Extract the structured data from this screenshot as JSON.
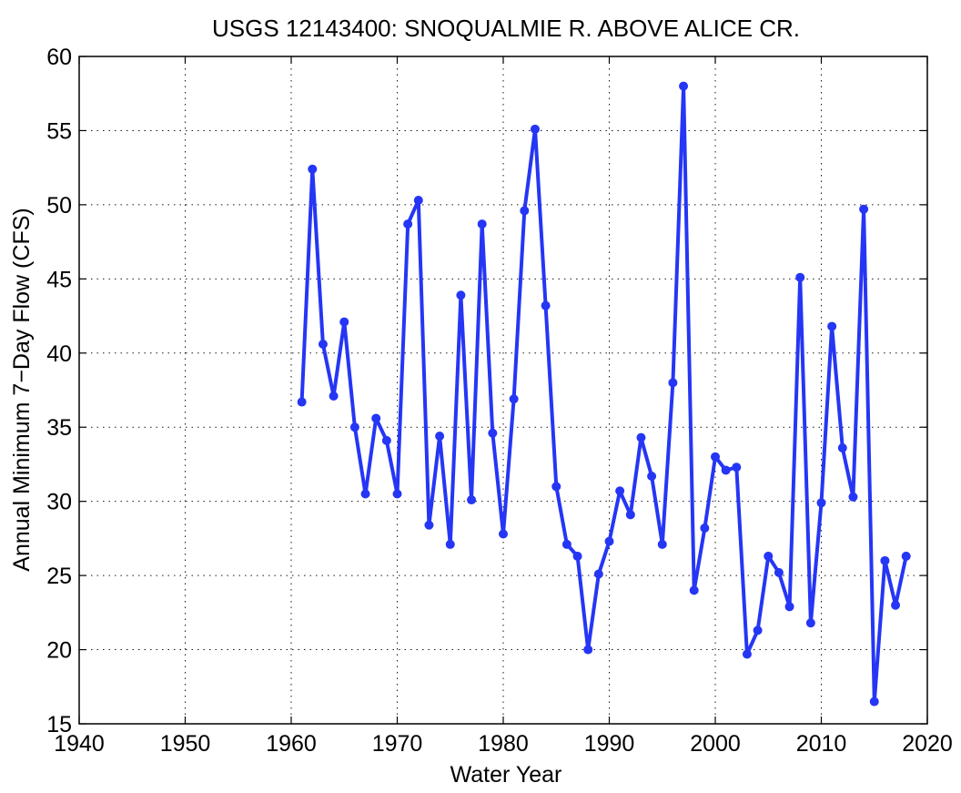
{
  "chart_data": {
    "type": "line",
    "title": "USGS 12143400: SNOQUALMIE R. ABOVE ALICE CR.",
    "xlabel": "Water Year",
    "ylabel": "Annual Minimum 7−Day Flow (CFS)",
    "xlim": [
      1940,
      2020
    ],
    "ylim": [
      15,
      60
    ],
    "xticks": [
      "1940",
      "1950",
      "1960",
      "1970",
      "1980",
      "1990",
      "2000",
      "2010",
      "2020"
    ],
    "yticks": [
      "15",
      "20",
      "25",
      "30",
      "35",
      "40",
      "45",
      "50",
      "55",
      "60"
    ],
    "grid": true,
    "line_color": "#2536f5",
    "series": [
      {
        "x": [
          1961,
          1962,
          1963,
          1964,
          1965,
          1966,
          1967,
          1968,
          1969,
          1970,
          1971,
          1972,
          1973,
          1974,
          1975,
          1976,
          1977,
          1978,
          1979,
          1980,
          1981,
          1982,
          1983,
          1984,
          1985,
          1986,
          1987,
          1988,
          1989,
          1990,
          1991,
          1992,
          1993,
          1994,
          1995,
          1996,
          1997,
          1998,
          1999,
          2000,
          2001,
          2002,
          2003,
          2004,
          2005,
          2006,
          2007,
          2008,
          2009,
          2010,
          2011,
          2012,
          2013,
          2014,
          2015,
          2016,
          2017,
          2018
        ],
        "y": [
          36.7,
          52.4,
          40.6,
          37.1,
          42.1,
          35.0,
          30.5,
          35.6,
          34.1,
          30.5,
          48.7,
          50.3,
          28.4,
          34.4,
          27.1,
          43.9,
          30.1,
          48.7,
          34.6,
          27.8,
          36.9,
          49.6,
          55.1,
          43.2,
          31.0,
          27.1,
          26.3,
          20.0,
          25.1,
          27.3,
          30.7,
          29.1,
          34.3,
          31.7,
          27.1,
          38.0,
          58.0,
          24.0,
          28.2,
          33.0,
          32.1,
          32.3,
          19.7,
          21.3,
          26.3,
          25.2,
          22.9,
          45.1,
          21.8,
          29.9,
          41.8,
          33.6,
          30.3,
          49.7,
          16.5,
          26.0,
          23.0,
          26.3
        ]
      }
    ]
  }
}
